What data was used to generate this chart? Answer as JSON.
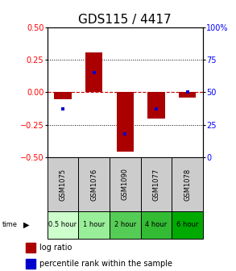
{
  "title": "GDS115 / 4417",
  "samples": [
    "GSM1075",
    "GSM1076",
    "GSM1090",
    "GSM1077",
    "GSM1078"
  ],
  "time_labels": [
    "0.5 hour",
    "1 hour",
    "2 hour",
    "4 hour",
    "6 hour"
  ],
  "time_colors": [
    "#ccffcc",
    "#99ee99",
    "#55cc55",
    "#33bb33",
    "#00aa00"
  ],
  "log_ratios": [
    -0.055,
    0.305,
    -0.455,
    -0.205,
    -0.045
  ],
  "percentile_ranks": [
    37,
    65,
    18,
    37,
    50
  ],
  "bar_color": "#aa0000",
  "dot_color": "#0000cc",
  "ylim_left": [
    -0.5,
    0.5
  ],
  "ylim_right": [
    0,
    100
  ],
  "yticks_left": [
    -0.5,
    -0.25,
    0,
    0.25,
    0.5
  ],
  "yticks_right": [
    0,
    25,
    50,
    75,
    100
  ],
  "hline_color": "#cc0000",
  "title_fontsize": 11,
  "tick_fontsize": 7,
  "sample_fontsize": 6,
  "time_fontsize": 6,
  "legend_fontsize": 7
}
